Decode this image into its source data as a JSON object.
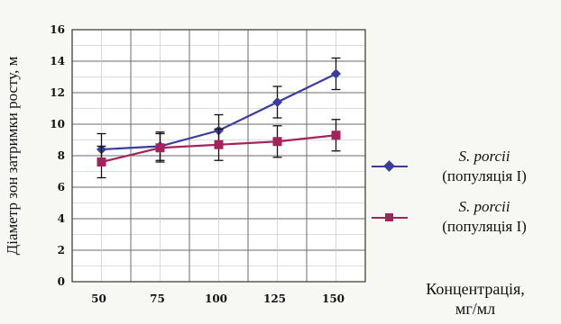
{
  "chart_data": {
    "type": "line",
    "x": [
      50,
      75,
      100,
      125,
      150
    ],
    "categories": [
      "50",
      "75",
      "100",
      "125",
      "150"
    ],
    "ylabel": "Діаметр зон затримки росту, м",
    "xlabel_line1": "Концентрація,",
    "xlabel_line2": "мг/мл",
    "ylim": [
      0,
      16
    ],
    "yticks": [
      0,
      2,
      4,
      6,
      8,
      10,
      12,
      14,
      16
    ],
    "grid": true,
    "legend_position": "right",
    "series": [
      {
        "name": "S. porcii",
        "name_suffix": "(популяція I)",
        "color": "#3a3d9e",
        "marker": "diamond",
        "values": [
          8.4,
          8.6,
          9.6,
          11.4,
          13.2
        ],
        "errors": [
          1.0,
          0.9,
          1.0,
          1.0,
          1.0
        ]
      },
      {
        "name": "S. porcii",
        "name_suffix": "(популяція I)",
        "color": "#a3245a",
        "marker": "square",
        "values": [
          7.6,
          8.5,
          8.7,
          8.9,
          9.3
        ],
        "errors": [
          1.0,
          0.9,
          1.0,
          1.0,
          1.0
        ]
      }
    ]
  }
}
